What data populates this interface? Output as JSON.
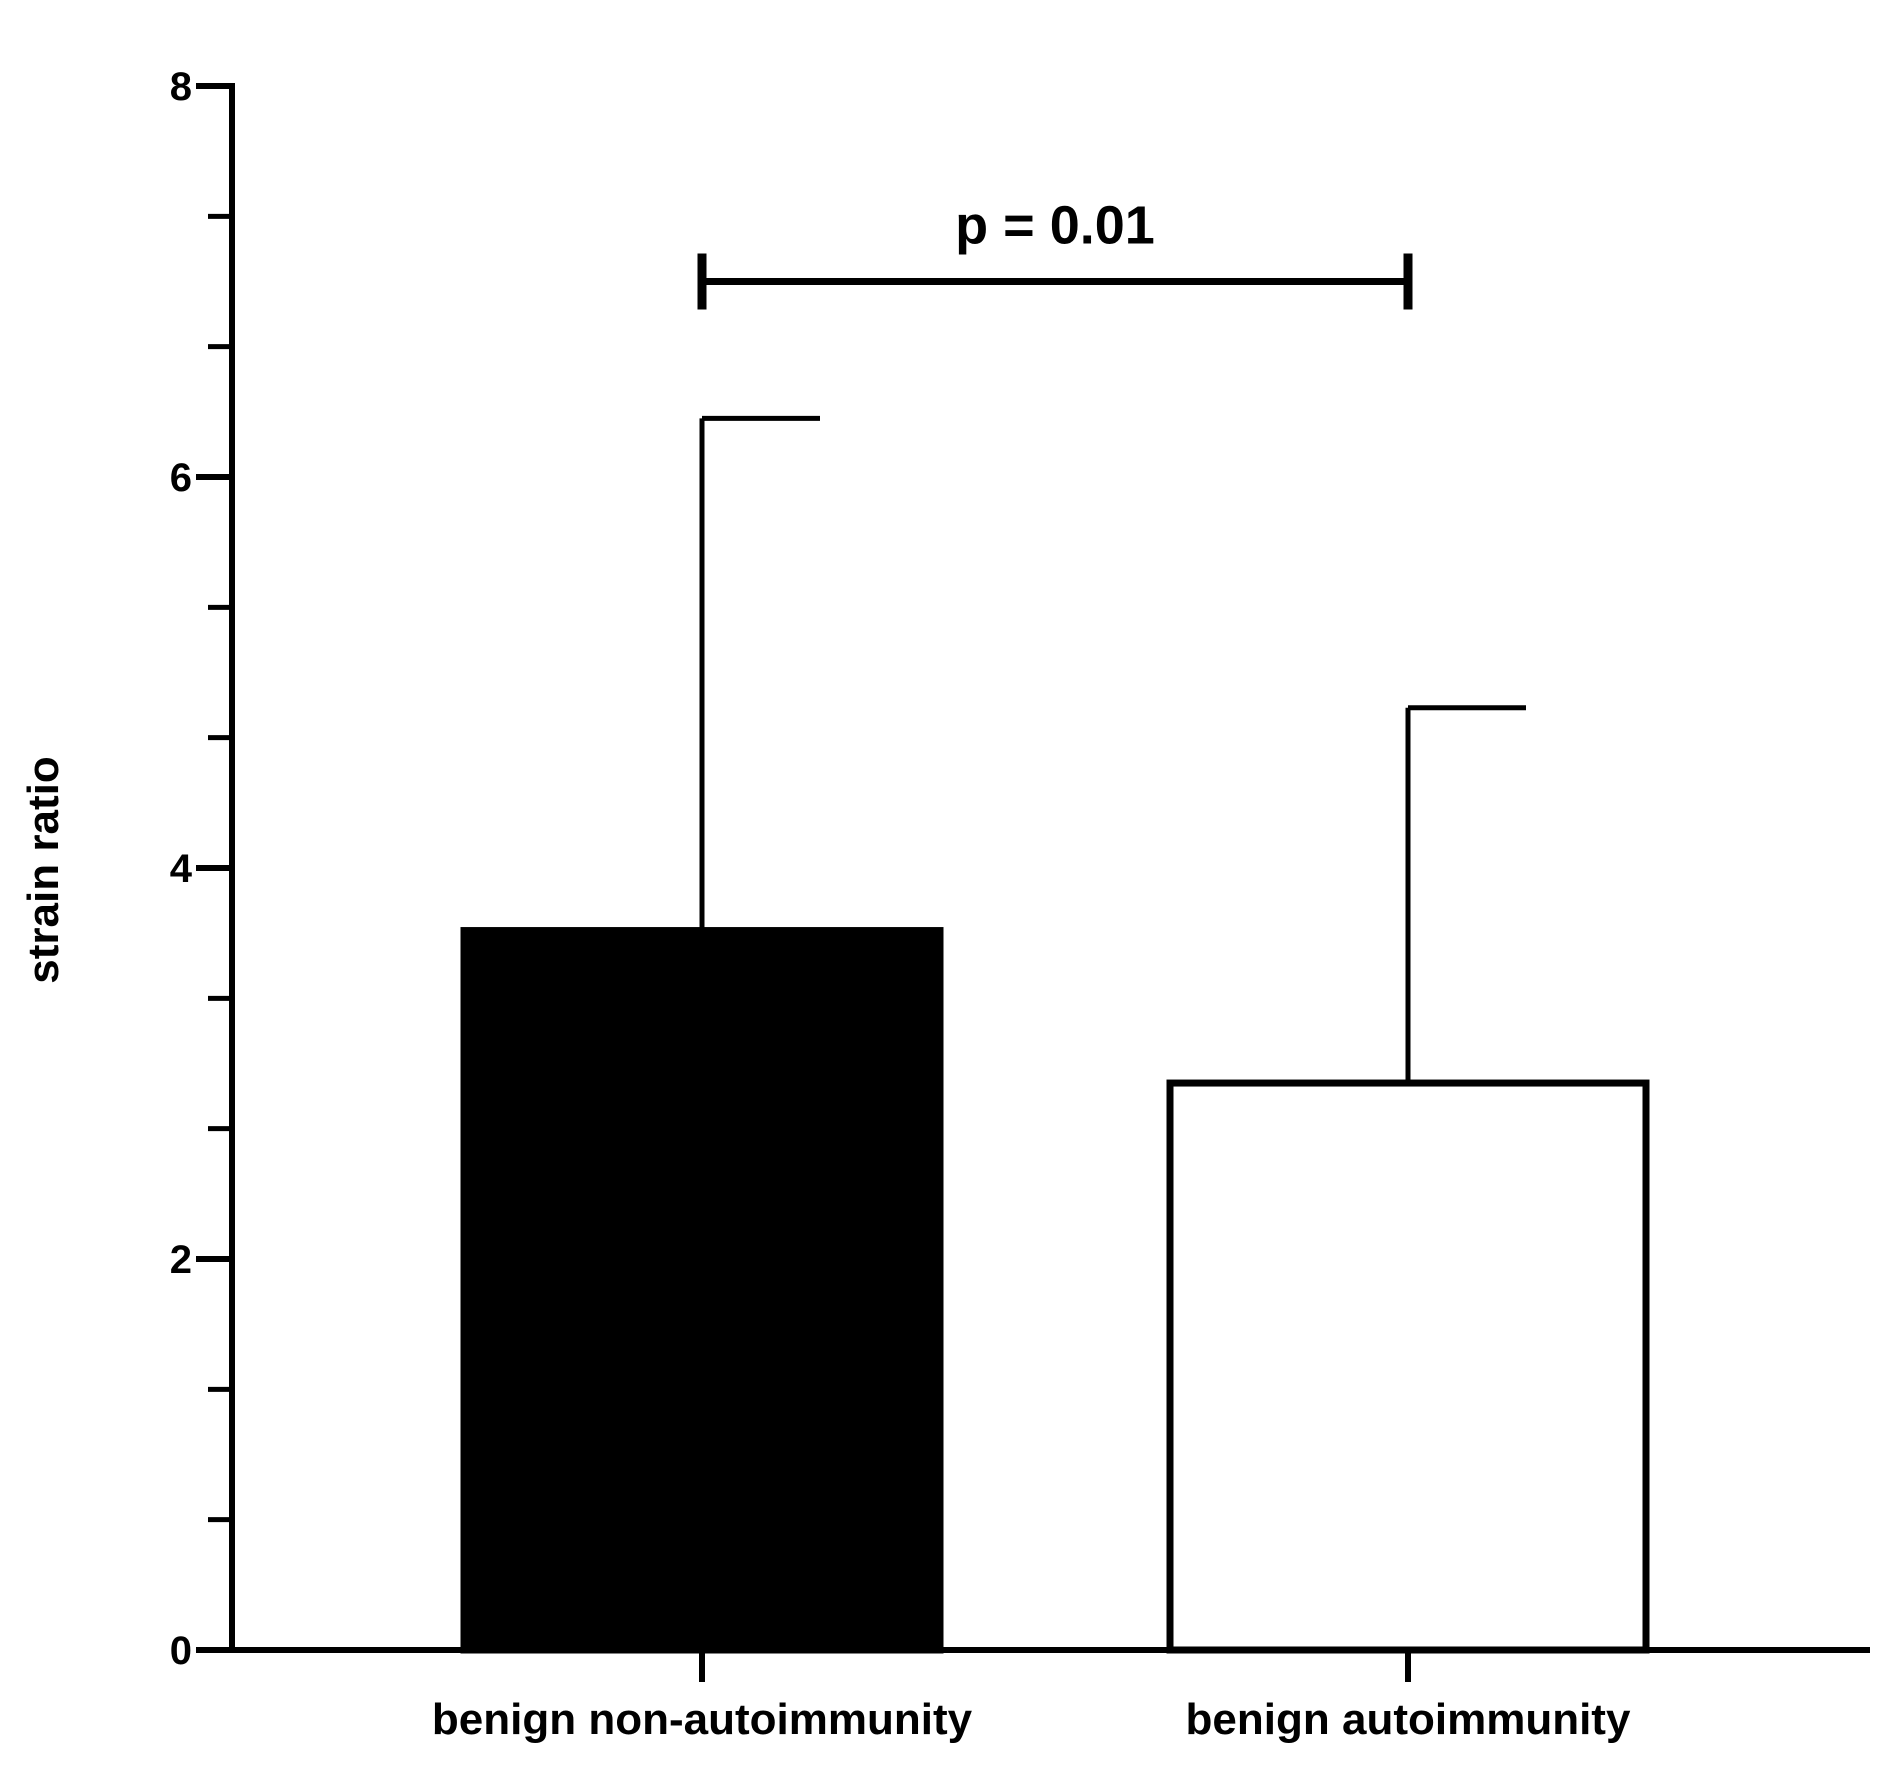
{
  "chart_data": {
    "type": "bar",
    "categories": [
      "benign non-autoimmunity",
      "benign autoimmunity"
    ],
    "values": [
      3.68,
      2.9
    ],
    "error_upper": [
      6.3,
      4.82
    ],
    "bar_colors": [
      "#000000",
      "#ffffff"
    ],
    "ylabel": "strain ratio",
    "ylim": [
      0,
      8
    ],
    "yticks": [
      0,
      2,
      4,
      6,
      8
    ],
    "yticks_minor": [
      0.667,
      1.333,
      2.667,
      3.333,
      4.667,
      5.333,
      6.667,
      7.333
    ],
    "grid": false,
    "annotation": {
      "text": "p = 0.01",
      "bracket_y": 7.0,
      "from_category": 0,
      "to_category": 1
    }
  }
}
